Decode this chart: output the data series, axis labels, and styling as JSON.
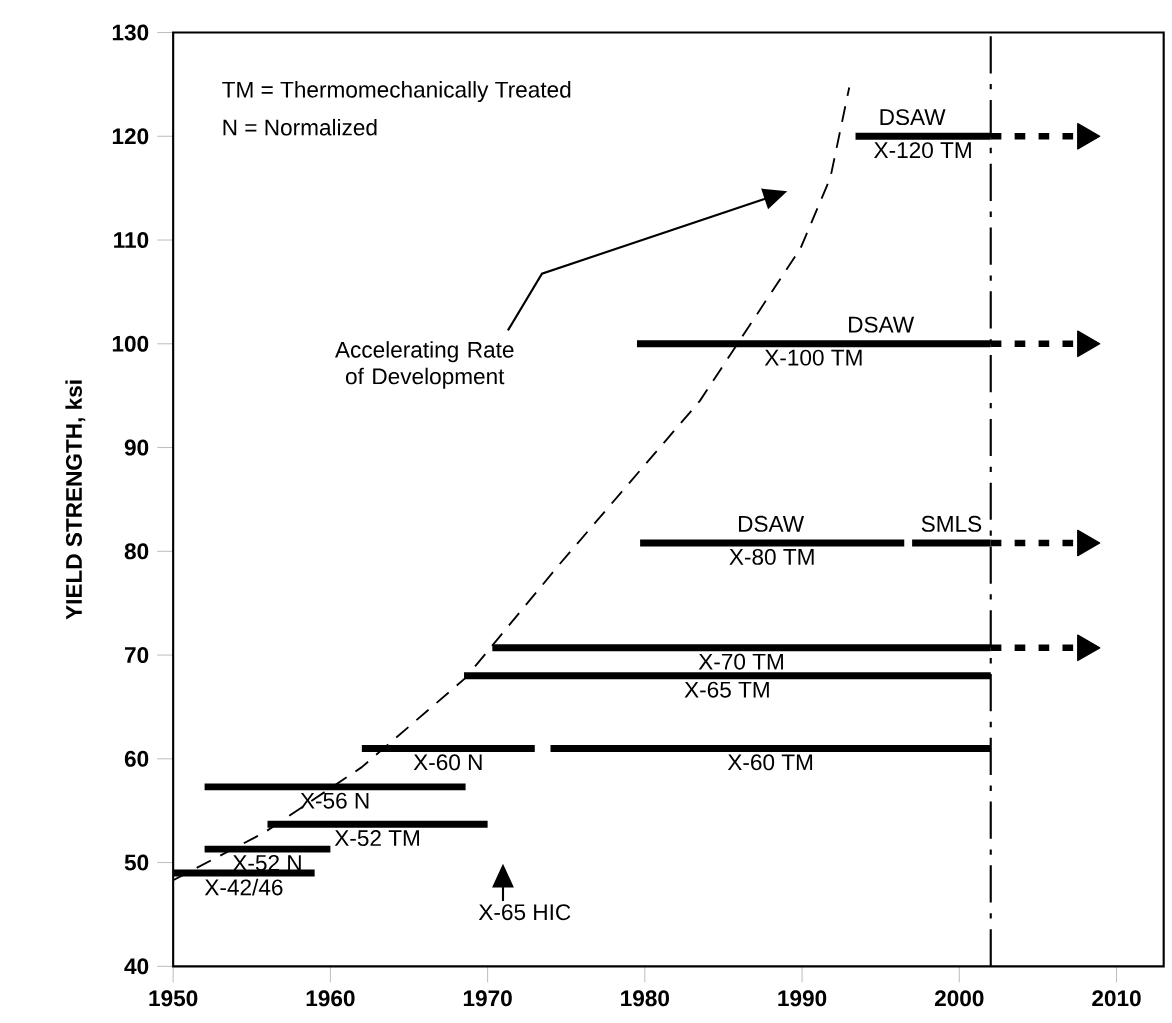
{
  "chart_data": {
    "type": "line",
    "ylabel": "YIELD STRENGTH, ksi",
    "xlim": [
      1950,
      2013
    ],
    "xticks": [
      1950,
      1960,
      1970,
      1980,
      1990,
      2000,
      2010
    ],
    "ylim": [
      40,
      130
    ],
    "yticks": [
      40,
      50,
      60,
      70,
      80,
      90,
      100,
      110,
      120,
      130
    ],
    "grid": false,
    "line_style": "solid",
    "series": [
      {
        "name": "X-42/46",
        "color": "#000000",
        "x": [
          1950,
          1959
        ],
        "values": [
          49,
          49
        ]
      },
      {
        "name": "X-52 N",
        "color": "#000000",
        "x": [
          1952,
          1960
        ],
        "values": [
          51.3,
          51.3
        ]
      },
      {
        "name": "X-52 TM",
        "color": "#000000",
        "x": [
          1956,
          1970
        ],
        "values": [
          53.7,
          53.7
        ]
      },
      {
        "name": "X-56 N",
        "color": "#000000",
        "x": [
          1952,
          1968.6
        ],
        "values": [
          57.3,
          57.3
        ]
      },
      {
        "name": "X-60 N",
        "color": "#000000",
        "x": [
          1962,
          1973
        ],
        "values": [
          61,
          61
        ]
      },
      {
        "name": "X-60 TM",
        "color": "#000000",
        "x": [
          1974,
          2002
        ],
        "values": [
          61,
          61
        ]
      },
      {
        "name": "X-65 TM",
        "color": "#000000",
        "x": [
          1968.5,
          2002
        ],
        "values": [
          68,
          68
        ]
      },
      {
        "name": "X-70 TM",
        "color": "#000000",
        "x": [
          1970.3,
          2002
        ],
        "values": [
          70.7,
          70.7
        ]
      },
      {
        "color": "#000000",
        "x": [
          2002,
          2008
        ],
        "values": [
          70.7,
          70.7
        ],
        "line_style": "dotted"
      },
      {
        "name": "X-80 TM",
        "color": "#000000",
        "x": [
          1979.7,
          1996.5
        ],
        "values": [
          80.8,
          80.8
        ]
      },
      {
        "color": "#000000",
        "x": [
          1997,
          2002
        ],
        "values": [
          80.8,
          80.8
        ]
      },
      {
        "color": "#000000",
        "x": [
          2002,
          2008
        ],
        "values": [
          80.8,
          80.8
        ],
        "line_style": "dotted"
      },
      {
        "name": "X-100 TM",
        "color": "#000000",
        "x": [
          1979.5,
          2002
        ],
        "values": [
          100,
          100
        ]
      },
      {
        "color": "#000000",
        "x": [
          2002,
          2008
        ],
        "values": [
          100,
          100
        ],
        "line_style": "dotted"
      },
      {
        "name": "X-120 TM",
        "color": "#000000",
        "x": [
          1993.4,
          2002
        ],
        "values": [
          120,
          120
        ]
      },
      {
        "color": "#000000",
        "x": [
          2002,
          2008
        ],
        "values": [
          120,
          120
        ],
        "line_style": "dotted"
      },
      {
        "color": "#000000",
        "x": [
          1950,
          1955.8,
          1962,
          1968.6,
          1974.6,
          1983.5,
          1989.9,
          1991.8,
          1993
        ],
        "values": [
          48.3,
          52.9,
          59.2,
          67.8,
          78.8,
          94.5,
          109.2,
          116,
          124.7
        ],
        "line_style": "dashed"
      }
    ],
    "ref_lines": [
      {
        "axis": "x",
        "value": 2002,
        "color": "#000000",
        "line_style": "dashed"
      }
    ],
    "annotations": [
      "TM = Thermomechanically Treated",
      "N = Normalized",
      {
        "text": "DSAW",
        "x": 1997,
        "y": 120
      },
      {
        "text": "DSAW",
        "x": 1995,
        "y": 100
      },
      {
        "text": "DSAW",
        "x": 1988,
        "y": 80.8
      },
      {
        "text": "SMLS",
        "x": 1999.5,
        "y": 80.8
      },
      "Accelerating Rate of Development",
      "X-65 HIC"
    ]
  }
}
